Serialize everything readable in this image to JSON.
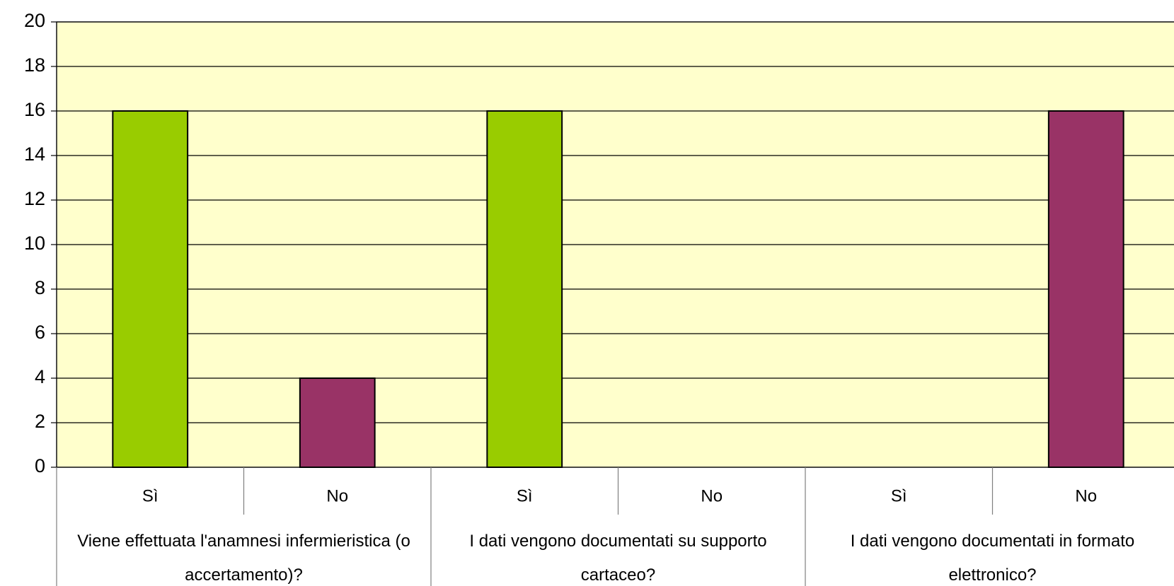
{
  "chart_data": {
    "type": "bar",
    "categories": [
      "Sì",
      "No",
      "Sì",
      "No",
      "Sì",
      "No"
    ],
    "groups": [
      "Viene effettuata l'anamnesi infermieristica (o accertamento)?",
      "I dati vengono documentati su supporto cartaceo?",
      "I dati vengono documentati in formato elettronico?"
    ],
    "values": [
      16,
      4,
      16,
      0,
      0,
      16
    ],
    "colors": [
      "#99cc00",
      "#993366",
      "#99cc00",
      "#993366",
      "#99cc00",
      "#993366"
    ],
    "ylim": [
      0,
      20
    ],
    "yticks": [
      0,
      2,
      4,
      6,
      8,
      10,
      12,
      14,
      16,
      18,
      20
    ],
    "grid": true
  }
}
